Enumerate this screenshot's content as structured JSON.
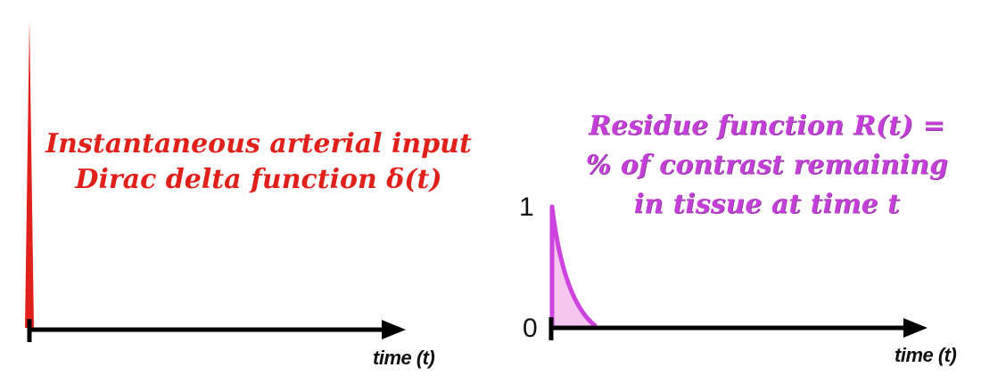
{
  "left_panel": {
    "title_line1": "Instantaneous arterial input",
    "title_line2": "Dirac delta function δ(t)",
    "x_axis_label": "time (t)",
    "color": "#e0201a"
  },
  "right_panel": {
    "title_line1": "Residue function R(t) =",
    "title_line2": "% of contrast remaining",
    "title_line3": "in tissue at time t",
    "x_axis_label": "time (t)",
    "y_tick_top": "1",
    "y_tick_bottom": "0",
    "color": "#cc44dd",
    "fill_color": "#f7c6f0"
  }
}
